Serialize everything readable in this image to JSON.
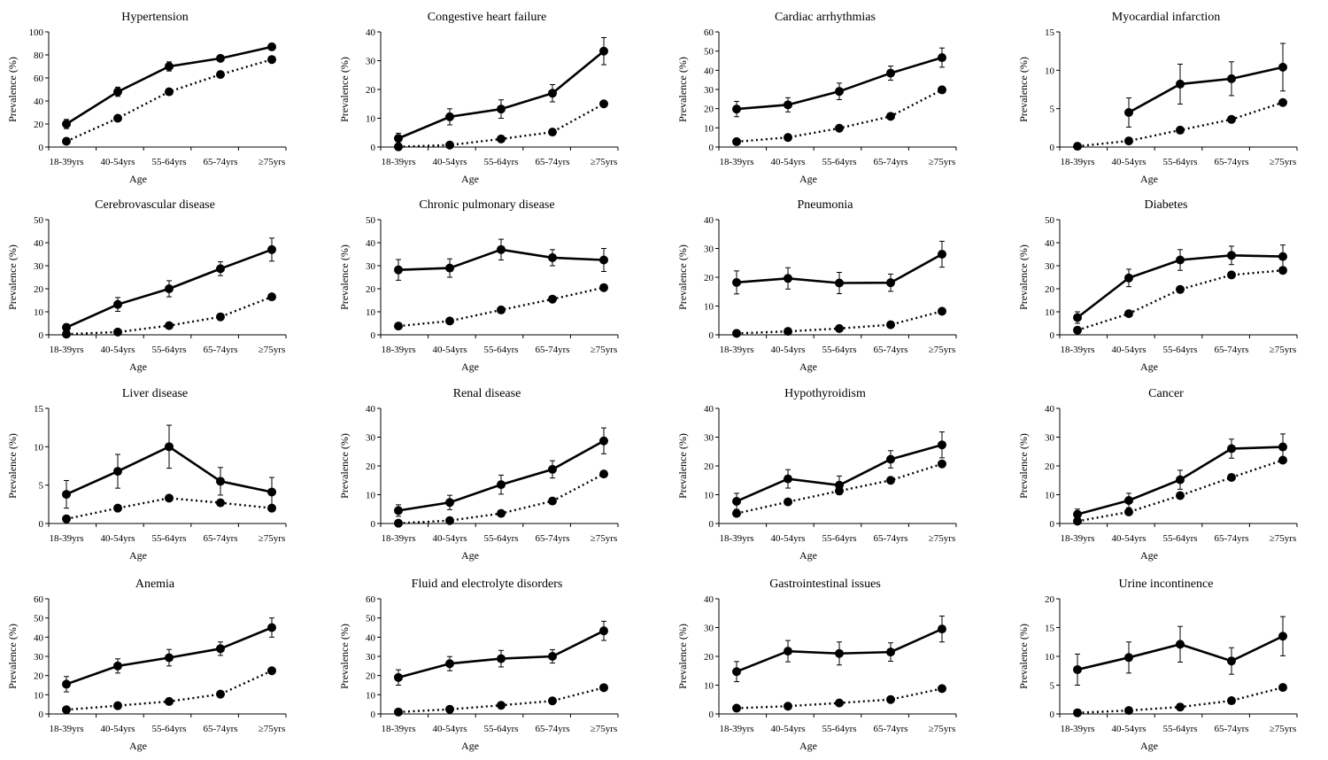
{
  "chart_data": [
    {
      "type": "line",
      "title": "Hypertension",
      "xlabel": "Age",
      "ylabel": "Prevalence (%)",
      "ylim": [
        0,
        100
      ],
      "ystep": 20,
      "categories": [
        "18-39yrs",
        "40-54yrs",
        "55-64yrs",
        "65-74yrs",
        "≥75yrs"
      ],
      "series": [
        {
          "style": "solid",
          "values": [
            20,
            48,
            70,
            77,
            87
          ],
          "error": [
            4,
            4,
            4,
            2,
            2
          ]
        },
        {
          "style": "dotted",
          "values": [
            5,
            25,
            48,
            63,
            76
          ]
        }
      ]
    },
    {
      "type": "line",
      "title": "Congestive heart failure",
      "xlabel": "Age",
      "ylabel": "Prevalence (%)",
      "ylim": [
        0,
        40
      ],
      "ystep": 10,
      "categories": [
        "18-39yrs",
        "40-54yrs",
        "55-64yrs",
        "65-74yrs",
        "≥75yrs"
      ],
      "series": [
        {
          "style": "solid",
          "values": [
            3,
            10.5,
            13.2,
            18.7,
            33.3
          ],
          "error": [
            1.8,
            2.8,
            3.2,
            3,
            4.7
          ]
        },
        {
          "style": "dotted",
          "values": [
            0.1,
            0.7,
            2.8,
            5.2,
            15
          ]
        }
      ]
    },
    {
      "type": "line",
      "title": "Cardiac arrhythmias",
      "xlabel": "Age",
      "ylabel": "Prevalence (%)",
      "ylim": [
        0,
        60
      ],
      "ystep": 10,
      "categories": [
        "18-39yrs",
        "40-54yrs",
        "55-64yrs",
        "65-74yrs",
        "≥75yrs"
      ],
      "series": [
        {
          "style": "solid",
          "values": [
            19.8,
            22,
            29,
            38.5,
            46.6
          ],
          "error": [
            4,
            3.7,
            4.3,
            3.7,
            5
          ]
        },
        {
          "style": "dotted",
          "values": [
            2.8,
            5,
            9.8,
            16,
            29.8
          ]
        }
      ]
    },
    {
      "type": "line",
      "title": "Myocardial infarction",
      "xlabel": "Age",
      "ylabel": "Prevalence (%)",
      "ylim": [
        0,
        15
      ],
      "ystep": 5,
      "categories": [
        "18-39yrs",
        "40-54yrs",
        "55-64yrs",
        "65-74yrs",
        "≥75yrs"
      ],
      "series": [
        {
          "style": "solid",
          "values": [
            null,
            4.5,
            8.2,
            8.9,
            10.4
          ],
          "error": [
            null,
            1.9,
            2.6,
            2.2,
            3.1
          ]
        },
        {
          "style": "dotted",
          "values": [
            0.1,
            0.8,
            2.2,
            3.6,
            5.8
          ]
        }
      ]
    },
    {
      "type": "line",
      "title": "Cerebrovascular disease",
      "xlabel": "Age",
      "ylabel": "Prevalence (%)",
      "ylim": [
        0,
        50
      ],
      "ystep": 10,
      "categories": [
        "18-39yrs",
        "40-54yrs",
        "55-64yrs",
        "65-74yrs",
        "≥75yrs"
      ],
      "series": [
        {
          "style": "solid",
          "values": [
            3.2,
            13.2,
            20,
            28.7,
            37
          ],
          "error": [
            1.5,
            3,
            3.5,
            3,
            5
          ]
        },
        {
          "style": "dotted",
          "values": [
            0.3,
            1.2,
            4,
            7.8,
            16.5
          ]
        }
      ]
    },
    {
      "type": "line",
      "title": "Chronic pulmonary disease",
      "xlabel": "Age",
      "ylabel": "Prevalence (%)",
      "ylim": [
        0,
        50
      ],
      "ystep": 10,
      "categories": [
        "18-39yrs",
        "40-54yrs",
        "55-64yrs",
        "65-74yrs",
        "≥75yrs"
      ],
      "series": [
        {
          "style": "solid",
          "values": [
            28.2,
            29,
            37,
            33.5,
            32.5
          ],
          "error": [
            4.5,
            4,
            4.5,
            3.5,
            5
          ]
        },
        {
          "style": "dotted",
          "values": [
            3.8,
            6,
            10.8,
            15.5,
            20.5
          ]
        }
      ]
    },
    {
      "type": "line",
      "title": "Pneumonia",
      "xlabel": "Age",
      "ylabel": "Prevalence (%)",
      "ylim": [
        0,
        40
      ],
      "ystep": 10,
      "categories": [
        "18-39yrs",
        "40-54yrs",
        "55-64yrs",
        "65-74yrs",
        "≥75yrs"
      ],
      "series": [
        {
          "style": "solid",
          "values": [
            18.2,
            19.6,
            18,
            18.1,
            28
          ],
          "error": [
            4,
            3.7,
            3.7,
            3,
            4.5
          ]
        },
        {
          "style": "dotted",
          "values": [
            0.5,
            1.2,
            2.2,
            3.5,
            8.2
          ]
        }
      ]
    },
    {
      "type": "line",
      "title": "Diabetes",
      "xlabel": "Age",
      "ylabel": "Prevalence (%)",
      "ylim": [
        0,
        50
      ],
      "ystep": 10,
      "categories": [
        "18-39yrs",
        "40-54yrs",
        "55-64yrs",
        "65-74yrs",
        "≥75yrs"
      ],
      "series": [
        {
          "style": "solid",
          "values": [
            7.5,
            24.7,
            32.5,
            34.5,
            34
          ],
          "error": [
            2.5,
            3.8,
            4.5,
            4,
            5
          ]
        },
        {
          "style": "dotted",
          "values": [
            2,
            9.2,
            19.7,
            26,
            28
          ]
        }
      ]
    },
    {
      "type": "line",
      "title": "Liver disease",
      "xlabel": "Age",
      "ylabel": "Prevalence (%)",
      "ylim": [
        0,
        15
      ],
      "ystep": 5,
      "categories": [
        "18-39yrs",
        "40-54yrs",
        "55-64yrs",
        "65-74yrs",
        "≥75yrs"
      ],
      "series": [
        {
          "style": "solid",
          "values": [
            3.8,
            6.8,
            10,
            5.5,
            4.1
          ],
          "error": [
            1.8,
            2.2,
            2.8,
            1.8,
            1.9
          ]
        },
        {
          "style": "dotted",
          "values": [
            0.6,
            2,
            3.3,
            2.7,
            2
          ]
        }
      ]
    },
    {
      "type": "line",
      "title": "Renal disease",
      "xlabel": "Age",
      "ylabel": "Prevalence (%)",
      "ylim": [
        0,
        40
      ],
      "ystep": 10,
      "categories": [
        "18-39yrs",
        "40-54yrs",
        "55-64yrs",
        "65-74yrs",
        "≥75yrs"
      ],
      "series": [
        {
          "style": "solid",
          "values": [
            4.5,
            7.3,
            13.5,
            18.8,
            28.7
          ],
          "error": [
            2,
            2.5,
            3.3,
            3,
            4.5
          ]
        },
        {
          "style": "dotted",
          "values": [
            0.1,
            1,
            3.5,
            7.8,
            17.2
          ]
        }
      ]
    },
    {
      "type": "line",
      "title": "Hypothyroidism",
      "xlabel": "Age",
      "ylabel": "Prevalence (%)",
      "ylim": [
        0,
        40
      ],
      "ystep": 10,
      "categories": [
        "18-39yrs",
        "40-54yrs",
        "55-64yrs",
        "65-74yrs",
        "≥75yrs"
      ],
      "series": [
        {
          "style": "solid",
          "values": [
            7.7,
            15.5,
            13.3,
            22.3,
            27.3
          ],
          "error": [
            2.8,
            3.2,
            3.2,
            3,
            4.5
          ]
        },
        {
          "style": "dotted",
          "values": [
            3.5,
            7.5,
            11.3,
            15,
            20.7
          ]
        }
      ]
    },
    {
      "type": "line",
      "title": "Cancer",
      "xlabel": "Age",
      "ylabel": "Prevalence (%)",
      "ylim": [
        0,
        40
      ],
      "ystep": 10,
      "categories": [
        "18-39yrs",
        "40-54yrs",
        "55-64yrs",
        "65-74yrs",
        "≥75yrs"
      ],
      "series": [
        {
          "style": "solid",
          "values": [
            3.2,
            8,
            15.2,
            26,
            26.6
          ],
          "error": [
            1.8,
            2.5,
            3.3,
            3.3,
            4.5
          ]
        },
        {
          "style": "dotted",
          "values": [
            0.8,
            4,
            9.7,
            16,
            22
          ]
        }
      ]
    },
    {
      "type": "line",
      "title": "Anemia",
      "xlabel": "Age",
      "ylabel": "Prevalence (%)",
      "ylim": [
        0,
        60
      ],
      "ystep": 10,
      "categories": [
        "18-39yrs",
        "40-54yrs",
        "55-64yrs",
        "65-74yrs",
        "≥75yrs"
      ],
      "series": [
        {
          "style": "solid",
          "values": [
            15.5,
            25,
            29.3,
            34,
            45
          ],
          "error": [
            4,
            3.7,
            4.3,
            3.5,
            5
          ]
        },
        {
          "style": "dotted",
          "values": [
            2.2,
            4.3,
            6.5,
            10.3,
            22.5
          ]
        }
      ]
    },
    {
      "type": "line",
      "title": "Fluid and electrolyte disorders",
      "xlabel": "Age",
      "ylabel": "Prevalence (%)",
      "ylim": [
        0,
        60
      ],
      "ystep": 10,
      "categories": [
        "18-39yrs",
        "40-54yrs",
        "55-64yrs",
        "65-74yrs",
        "≥75yrs"
      ],
      "series": [
        {
          "style": "solid",
          "values": [
            19,
            26.2,
            28.8,
            30,
            43.3
          ],
          "error": [
            4,
            3.7,
            4.3,
            3.5,
            5
          ]
        },
        {
          "style": "dotted",
          "values": [
            1,
            2.4,
            4.5,
            6.8,
            13.7
          ]
        }
      ]
    },
    {
      "type": "line",
      "title": "Gastrointestinal issues",
      "xlabel": "Age",
      "ylabel": "Prevalence (%)",
      "ylim": [
        0,
        40
      ],
      "ystep": 10,
      "categories": [
        "18-39yrs",
        "40-54yrs",
        "55-64yrs",
        "65-74yrs",
        "≥75yrs"
      ],
      "series": [
        {
          "style": "solid",
          "values": [
            14.7,
            21.8,
            21,
            21.5,
            29.5
          ],
          "error": [
            3.5,
            3.7,
            4,
            3.2,
            4.5
          ]
        },
        {
          "style": "dotted",
          "values": [
            2,
            2.7,
            3.8,
            5,
            8.8
          ]
        }
      ]
    },
    {
      "type": "line",
      "title": "Urine incontinence",
      "xlabel": "Age",
      "ylabel": "Prevalence (%)",
      "ylim": [
        0,
        20
      ],
      "ystep": 5,
      "categories": [
        "18-39yrs",
        "40-54yrs",
        "55-64yrs",
        "65-74yrs",
        "≥75yrs"
      ],
      "series": [
        {
          "style": "solid",
          "values": [
            7.7,
            9.8,
            12.1,
            9.2,
            13.5
          ],
          "error": [
            2.7,
            2.7,
            3.1,
            2.3,
            3.4
          ]
        },
        {
          "style": "dotted",
          "values": [
            0.2,
            0.6,
            1.2,
            2.3,
            4.6
          ]
        }
      ]
    }
  ]
}
